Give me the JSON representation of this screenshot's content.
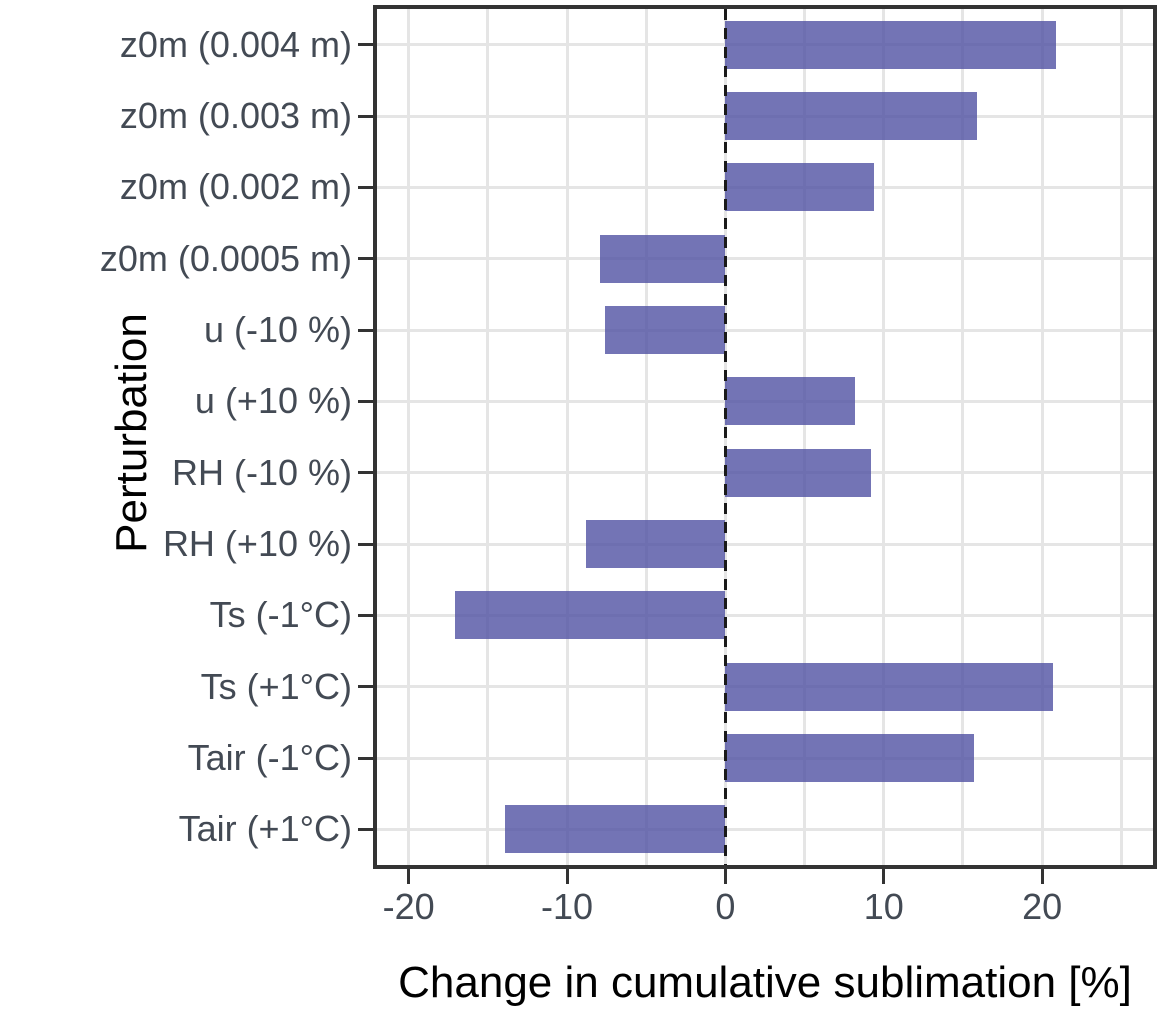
{
  "chart_data": {
    "type": "bar",
    "orientation": "horizontal",
    "title": "",
    "xlabel": "Change in cumulative sublimation [%]",
    "ylabel": "Perturbation",
    "categories": [
      "z0m (0.004 m)",
      "z0m (0.003 m)",
      "z0m (0.002 m)",
      "z0m (0.0005 m)",
      "u (-10 %)",
      "u (+10 %)",
      "RH (-10 %)",
      "RH (+10 %)",
      "Ts (-1°C)",
      "Ts (+1°C)",
      "Tair (-1°C)",
      "Tair (+1°C)"
    ],
    "values": [
      20.9,
      15.9,
      9.4,
      -7.9,
      -7.6,
      8.2,
      9.2,
      -8.8,
      -17.1,
      20.7,
      15.7,
      -13.9
    ],
    "xlim": [
      -22,
      27
    ],
    "x_major_ticks": [
      -20,
      -10,
      0,
      10,
      20
    ],
    "x_major_tick_labels": [
      "-20",
      "-10",
      "0",
      "10",
      "20"
    ],
    "x_minor_gridlines": [
      -15,
      -5,
      5,
      15,
      25
    ],
    "zero_reference_line": 0,
    "grid": "on",
    "legend_position": "none",
    "colors": {
      "bar_fill": "rgba(80,81,163,0.8)",
      "bar_fill_hex_on_white": "#7173BF",
      "gridline": "#E5E5E5",
      "zero_line": "#1a1a1a",
      "panel_border": "#333333",
      "axis_text": "#434a54",
      "axis_title": "#000000",
      "background": "#ffffff"
    }
  }
}
